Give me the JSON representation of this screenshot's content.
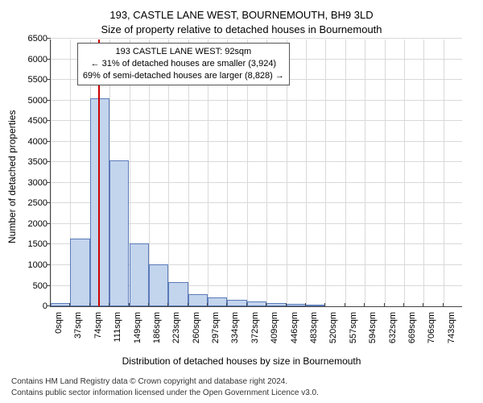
{
  "title_line1": "193, CASTLE LANE WEST, BOURNEMOUTH, BH9 3LD",
  "title_line2": "Size of property relative to detached houses in Bournemouth",
  "y_axis_label": "Number of detached properties",
  "x_axis_caption": "Distribution of detached houses by size in Bournemouth",
  "credit_line1": "Contains HM Land Registry data © Crown copyright and database right 2024.",
  "credit_line2": "Contains public sector information licensed under the Open Government Licence v3.0.",
  "chart": {
    "type": "histogram",
    "ylim": [
      0,
      6500
    ],
    "ytick_step": 500,
    "xlim": [
      0,
      780
    ],
    "bar_fill": "#c3d4ed",
    "bar_stroke": "#5a7bb8",
    "grid_color": "#d9d9d9",
    "ref_line": {
      "x": 92,
      "color": "#cc0000"
    },
    "bin_width": 37,
    "values": [
      80,
      1650,
      5050,
      3550,
      1520,
      1030,
      580,
      300,
      220,
      160,
      120,
      90,
      70,
      40,
      0,
      0,
      0,
      0,
      0,
      0,
      0
    ],
    "x_ticks": [
      0,
      37,
      74,
      111,
      149,
      186,
      223,
      260,
      297,
      334,
      372,
      409,
      446,
      483,
      520,
      557,
      594,
      632,
      669,
      706,
      743
    ],
    "x_tick_labels": [
      "0sqm",
      "37sqm",
      "74sqm",
      "111sqm",
      "149sqm",
      "186sqm",
      "223sqm",
      "260sqm",
      "297sqm",
      "334sqm",
      "372sqm",
      "409sqm",
      "446sqm",
      "483sqm",
      "520sqm",
      "557sqm",
      "594sqm",
      "632sqm",
      "669sqm",
      "706sqm",
      "743sqm"
    ]
  },
  "annotation": {
    "line1": "193 CASTLE LANE WEST: 92sqm",
    "line2": "← 31% of detached houses are smaller (3,924)",
    "line3": "69% of semi-detached houses are larger (8,828) →"
  },
  "fontsizes": {
    "title": 13,
    "axis_label": 12,
    "tick": 11,
    "annot": 11,
    "credits": 10
  }
}
